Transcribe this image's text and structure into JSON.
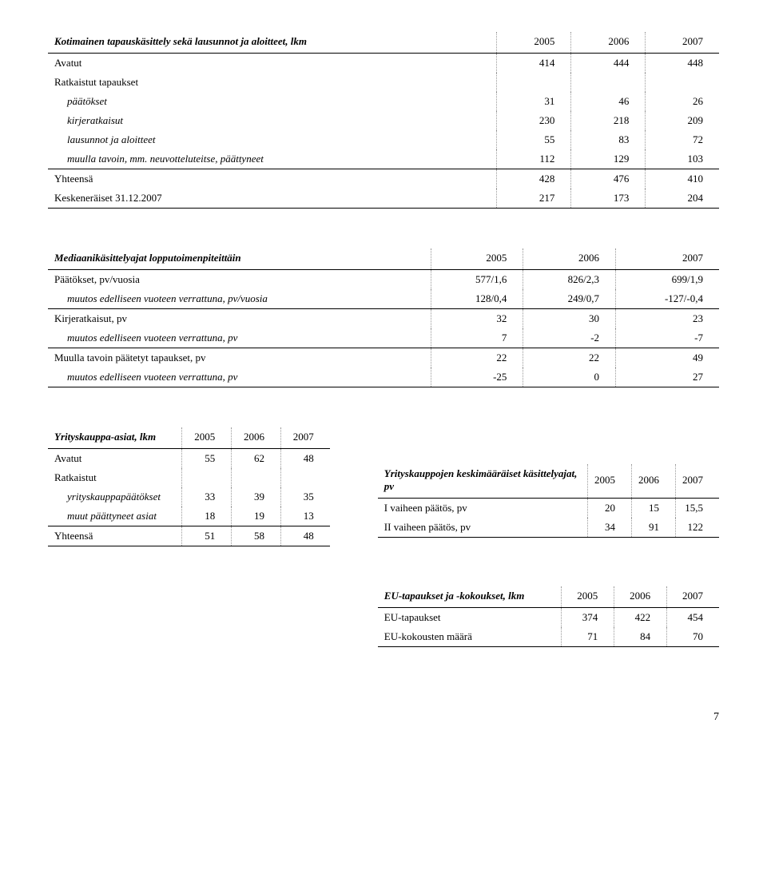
{
  "table1": {
    "title": "Kotimainen tapauskäsittely sekä lausunnot ja aloitteet, lkm",
    "years": [
      "2005",
      "2006",
      "2007"
    ],
    "rows": [
      {
        "label": "Avatut",
        "vals": [
          "414",
          "444",
          "448"
        ],
        "indent": false
      },
      {
        "label": "Ratkaistut tapaukset",
        "vals": [
          "",
          "",
          ""
        ],
        "indent": false
      },
      {
        "label": "päätökset",
        "vals": [
          "31",
          "46",
          "26"
        ],
        "indent": true
      },
      {
        "label": "kirjeratkaisut",
        "vals": [
          "230",
          "218",
          "209"
        ],
        "indent": true
      },
      {
        "label": "lausunnot ja aloitteet",
        "vals": [
          "55",
          "83",
          "72"
        ],
        "indent": true
      },
      {
        "label": "muulla tavoin, mm. neuvotteluteitse, päättyneet",
        "vals": [
          "112",
          "129",
          "103"
        ],
        "indent": true
      }
    ],
    "footer": [
      {
        "label": "Yhteensä",
        "vals": [
          "428",
          "476",
          "410"
        ]
      },
      {
        "label": "Keskeneräiset 31.12.2007",
        "vals": [
          "217",
          "173",
          "204"
        ]
      }
    ]
  },
  "table2": {
    "title": "Mediaanikäsittelyajat lopputoimenpiteittäin",
    "years": [
      "2005",
      "2006",
      "2007"
    ],
    "groups": [
      {
        "main": {
          "label": "Päätökset, pv/vuosia",
          "vals": [
            "577/1,6",
            "826/2,3",
            "699/1,9"
          ]
        },
        "sub": {
          "label": "muutos edelliseen vuoteen verrattuna, pv/vuosia",
          "vals": [
            "128/0,4",
            "249/0,7",
            "-127/-0,4"
          ]
        }
      },
      {
        "main": {
          "label": "Kirjeratkaisut, pv",
          "vals": [
            "32",
            "30",
            "23"
          ]
        },
        "sub": {
          "label": "muutos edelliseen vuoteen verrattuna, pv",
          "vals": [
            "7",
            "-2",
            "-7"
          ]
        }
      },
      {
        "main": {
          "label": "Muulla tavoin päätetyt tapaukset, pv",
          "vals": [
            "22",
            "22",
            "49"
          ]
        },
        "sub": {
          "label": "muutos edelliseen vuoteen verrattuna, pv",
          "vals": [
            "-25",
            "0",
            "27"
          ]
        }
      }
    ]
  },
  "table3": {
    "title": "Yrityskauppa-asiat, lkm",
    "years": [
      "2005",
      "2006",
      "2007"
    ],
    "rows": [
      {
        "label": "Avatut",
        "vals": [
          "55",
          "62",
          "48"
        ],
        "indent": false
      },
      {
        "label": "Ratkaistut",
        "vals": [
          "",
          "",
          ""
        ],
        "indent": false
      },
      {
        "label": "yrityskauppapäätökset",
        "vals": [
          "33",
          "39",
          "35"
        ],
        "indent": true
      },
      {
        "label": "muut päättyneet asiat",
        "vals": [
          "18",
          "19",
          "13"
        ],
        "indent": true
      }
    ],
    "footer": [
      {
        "label": "Yhteensä",
        "vals": [
          "51",
          "58",
          "48"
        ]
      }
    ]
  },
  "table4": {
    "title": "Yrityskauppojen keskimääräiset käsittelyajat, pv",
    "years": [
      "2005",
      "2006",
      "2007"
    ],
    "rows": [
      {
        "label": "I vaiheen päätös, pv",
        "vals": [
          "20",
          "15",
          "15,5"
        ]
      },
      {
        "label": "II vaiheen päätös, pv",
        "vals": [
          "34",
          "91",
          "122"
        ]
      }
    ]
  },
  "table5": {
    "title": "EU-tapaukset ja -kokoukset, lkm",
    "years": [
      "2005",
      "2006",
      "2007"
    ],
    "rows": [
      {
        "label": "EU-tapaukset",
        "vals": [
          "374",
          "422",
          "454"
        ]
      },
      {
        "label": "EU-kokousten määrä",
        "vals": [
          "71",
          "84",
          "70"
        ]
      }
    ]
  },
  "pageNumber": "7"
}
